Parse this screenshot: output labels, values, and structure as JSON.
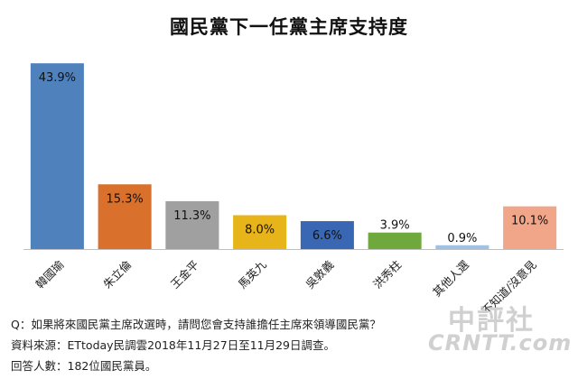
{
  "chart_data": {
    "type": "bar",
    "title": "國民黨下一任黨主席支持度",
    "categories": [
      "韓國瑜",
      "朱立倫",
      "王金平",
      "馬英九",
      "吳敦義",
      "洪秀柱",
      "其他人選",
      "不知道/沒意見"
    ],
    "values": [
      43.9,
      15.3,
      11.3,
      8.0,
      6.6,
      3.9,
      0.9,
      10.1
    ],
    "value_labels": [
      "43.9%",
      "15.3%",
      "11.3%",
      "8.0%",
      "6.6%",
      "3.9%",
      "0.9%",
      "10.1%"
    ],
    "colors": [
      "#4f81bd",
      "#d9702c",
      "#a0a0a0",
      "#e7b41a",
      "#3a67b3",
      "#6fa83c",
      "#9fc1e3",
      "#f1a68a"
    ],
    "ylim": [
      0,
      45
    ],
    "xlabel": "",
    "ylabel": "",
    "grid": false,
    "legend": "none"
  },
  "notes": {
    "question": "Q：如果將來國民黨主席改選時，請問您會支持誰擔任主席來領導國民黨？",
    "source": "資料來源：ETtoday民調雲2018年11月27日至11月29日調查。",
    "respondents": "回答人數：182位國民黨員。"
  },
  "watermark": {
    "cn": "中評社",
    "en": "CRNTT.com"
  }
}
